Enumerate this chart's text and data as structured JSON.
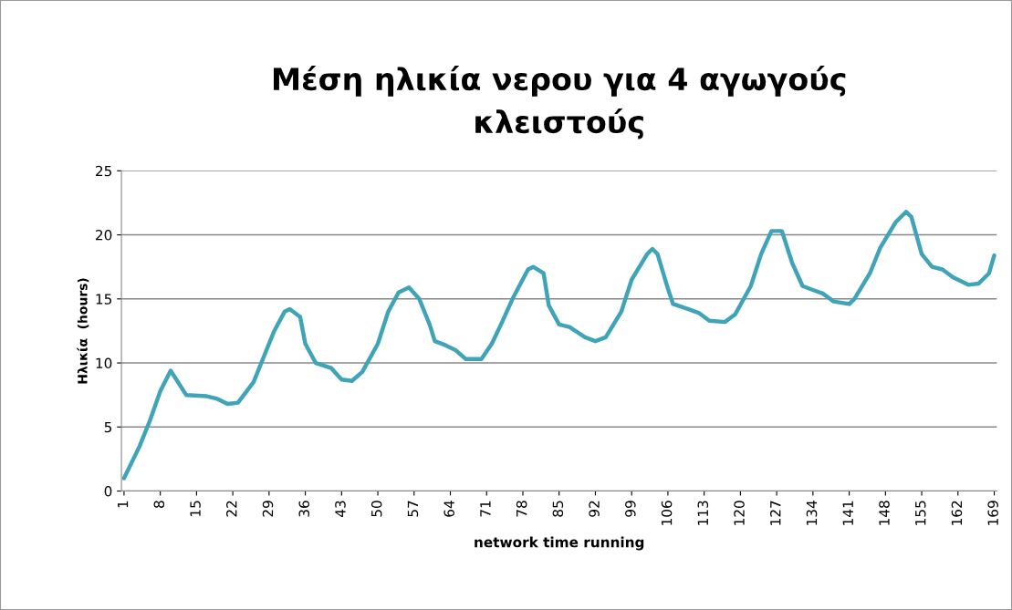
{
  "chart_data": {
    "type": "line",
    "title": "Μέση ηλικία νερου για 4 αγωγούς\nκλειστούς",
    "xlabel": "network time running",
    "ylabel": "Ηλικία  (hours)",
    "x": [
      1,
      4,
      6,
      8,
      10,
      13,
      17,
      19,
      21,
      23,
      26,
      28,
      30,
      32,
      33,
      35,
      36,
      38,
      41,
      43,
      45,
      47,
      50,
      52,
      54,
      56,
      58,
      60,
      61,
      63,
      65,
      67,
      70,
      72,
      74,
      76,
      79,
      80,
      82,
      83,
      85,
      87,
      90,
      92,
      94,
      97,
      99,
      102,
      103,
      104,
      106,
      107,
      110,
      112,
      114,
      117,
      119,
      122,
      124,
      126,
      128,
      130,
      132,
      134,
      136,
      138,
      141,
      142,
      145,
      147,
      150,
      152,
      153,
      155,
      157,
      159,
      161,
      164,
      166,
      168,
      169
    ],
    "series": [
      {
        "color": "#40a4b8",
        "values": [
          1.0,
          3.5,
          5.5,
          7.8,
          9.4,
          7.5,
          7.4,
          7.2,
          6.8,
          6.9,
          8.5,
          10.5,
          12.5,
          14.0,
          14.2,
          13.6,
          11.5,
          10.0,
          9.6,
          8.7,
          8.6,
          9.3,
          11.5,
          14.0,
          15.5,
          15.9,
          15.0,
          13.0,
          11.7,
          11.4,
          11.0,
          10.3,
          10.3,
          11.5,
          13.2,
          15.0,
          17.3,
          17.5,
          17.0,
          14.5,
          13.0,
          12.8,
          12.0,
          11.7,
          12.0,
          14.0,
          16.5,
          18.5,
          18.9,
          18.5,
          15.8,
          14.6,
          14.2,
          13.9,
          13.3,
          13.2,
          13.8,
          16.0,
          18.5,
          20.3,
          20.3,
          17.8,
          16.0,
          15.7,
          15.4,
          14.8,
          14.6,
          15.0,
          17.0,
          19.0,
          21.0,
          21.8,
          21.4,
          18.5,
          17.5,
          17.3,
          16.7,
          16.1,
          16.2,
          17.0,
          18.4
        ]
      }
    ],
    "xlim": [
      0.5,
      169.5
    ],
    "xticks": [
      1,
      8,
      15,
      22,
      29,
      36,
      43,
      50,
      57,
      64,
      71,
      78,
      85,
      92,
      99,
      106,
      113,
      120,
      127,
      134,
      141,
      148,
      155,
      162,
      169
    ],
    "ylim": [
      0,
      25
    ],
    "yticks": [
      0,
      5,
      10,
      15,
      20,
      25
    ],
    "grid": "y",
    "marker": "none",
    "line_style": "solid",
    "legend": false
  }
}
